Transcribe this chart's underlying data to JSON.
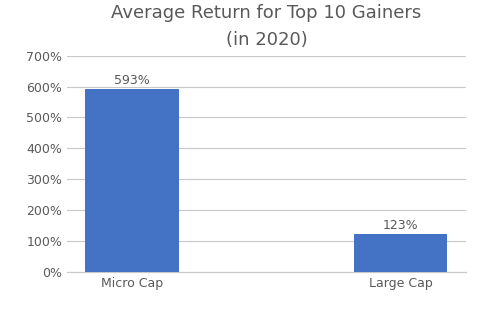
{
  "categories": [
    "Micro Cap",
    "Large Cap"
  ],
  "values": [
    593,
    123
  ],
  "bar_color": "#4472C4",
  "title_line1": "Average Return for Top 10 Gainers",
  "title_line2": "(in 2020)",
  "title_color": "#595959",
  "ylim": [
    0,
    700
  ],
  "yticks": [
    0,
    100,
    200,
    300,
    400,
    500,
    600,
    700
  ],
  "bar_labels": [
    "593%",
    "123%"
  ],
  "label_fontsize": 9,
  "tick_fontsize": 9,
  "title_fontsize": 13,
  "subtitle_fontsize": 10,
  "background_color": "#ffffff",
  "grid_color": "#c8c8c8",
  "bar_width": 0.35
}
